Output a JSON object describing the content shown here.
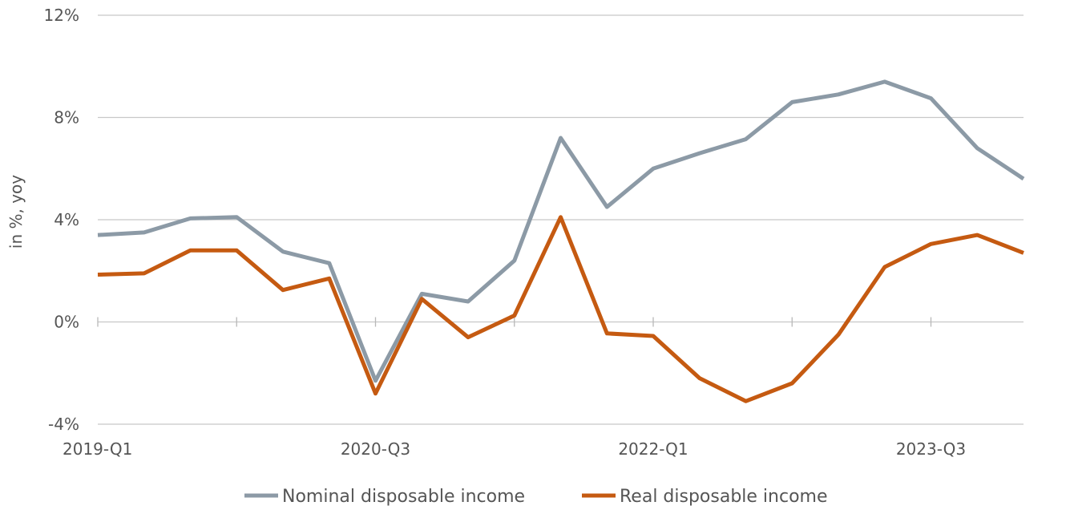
{
  "chart_data": {
    "type": "line",
    "ylabel": "in %, yoy",
    "ylim": [
      -4,
      12
    ],
    "yticks": [
      -4,
      0,
      4,
      8,
      12
    ],
    "ytick_labels": [
      "-4%",
      "0%",
      "4%",
      "8%",
      "12%"
    ],
    "grid": true,
    "legend_position": "bottom",
    "x": [
      "2019-Q1",
      "2019-Q2",
      "2019-Q3",
      "2019-Q4",
      "2020-Q1",
      "2020-Q2",
      "2020-Q3",
      "2020-Q4",
      "2021-Q1",
      "2021-Q2",
      "2021-Q3",
      "2021-Q4",
      "2022-Q1",
      "2022-Q2",
      "2022-Q3",
      "2022-Q4",
      "2023-Q1",
      "2023-Q2",
      "2023-Q3",
      "2023-Q4",
      "2024-Q1"
    ],
    "x_tick_labels": [
      "2019-Q1",
      "2020-Q3",
      "2022-Q1",
      "2023-Q3"
    ],
    "series": [
      {
        "name": "Nominal disposable income",
        "color": "#8c9aa6",
        "values": [
          3.4,
          3.5,
          4.05,
          4.1,
          2.75,
          2.3,
          -2.3,
          1.1,
          0.8,
          2.4,
          7.2,
          4.5,
          6.0,
          6.6,
          7.15,
          8.6,
          8.9,
          9.4,
          8.75,
          6.8,
          5.6
        ]
      },
      {
        "name": "Real disposable income",
        "color": "#c55a11",
        "values": [
          1.85,
          1.9,
          2.8,
          2.8,
          1.25,
          1.7,
          -2.8,
          0.9,
          -0.6,
          0.25,
          4.1,
          -0.45,
          -0.55,
          -2.2,
          -3.1,
          -2.4,
          -0.5,
          2.15,
          3.05,
          3.4,
          2.7
        ]
      }
    ]
  }
}
